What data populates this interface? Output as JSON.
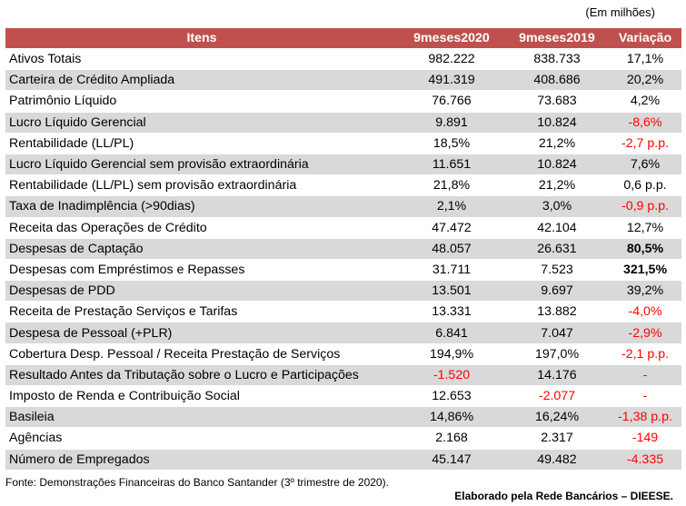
{
  "unit_note": "(Em milhões)",
  "header": {
    "items": "Itens",
    "col_2020": "9meses2020",
    "col_2019": "9meses2019",
    "variation": "Variação"
  },
  "rows": [
    {
      "name": "Ativos Totais",
      "v2020": "982.222",
      "v2019": "838.733",
      "var": "17,1%"
    },
    {
      "name": "Carteira de Crédito Ampliada",
      "v2020": "491.319",
      "v2019": "408.686",
      "var": "20,2%"
    },
    {
      "name": "Patrimônio Líquido",
      "v2020": "76.766",
      "v2019": "73.683",
      "var": "4,2%"
    },
    {
      "name": "Lucro Líquido Gerencial",
      "v2020": "9.891",
      "v2019": "10.824",
      "var": "-8,6%"
    },
    {
      "name": "Rentabilidade (LL/PL)",
      "v2020": "18,5%",
      "v2019": "21,2%",
      "var": "-2,7 p.p."
    },
    {
      "name": "Lucro Líquido Gerencial sem provisão extraordinária",
      "v2020": "11.651",
      "v2019": "10.824",
      "var": "7,6%"
    },
    {
      "name": "Rentabilidade (LL/PL) sem provisão extraordinária",
      "v2020": "21,8%",
      "v2019": "21,2%",
      "var": "0,6 p.p."
    },
    {
      "name": "Taxa de Inadimplência (>90dias)",
      "v2020": "2,1%",
      "v2019": "3,0%",
      "var": "-0,9 p.p."
    },
    {
      "name": "Receita das Operações de Crédito",
      "v2020": "47.472",
      "v2019": "42.104",
      "var": "12,7%"
    },
    {
      "name": "Despesas de Captação",
      "v2020": "48.057",
      "v2019": "26.631",
      "var": "80,5%"
    },
    {
      "name": "Despesas com Empréstimos e Repasses",
      "v2020": "31.711",
      "v2019": "7.523",
      "var": "321,5%"
    },
    {
      "name": "Despesas de PDD",
      "v2020": "13.501",
      "v2019": "9.697",
      "var": "39,2%"
    },
    {
      "name": "Receita de Prestação Serviços e Tarifas",
      "v2020": "13.331",
      "v2019": "13.882",
      "var": "-4,0%"
    },
    {
      "name": "Despesa de Pessoal (+PLR)",
      "v2020": "6.841",
      "v2019": "7.047",
      "var": "-2,9%"
    },
    {
      "name": "Cobertura Desp. Pessoal / Receita Prestação de Serviços",
      "v2020": "194,9%",
      "v2019": "197,0%",
      "var": "-2,1 p.p."
    },
    {
      "name": "Resultado Antes da Tributação sobre o Lucro e Participações",
      "v2020": "-1.520",
      "v2019": "14.176",
      "var": "-"
    },
    {
      "name": "Imposto de Renda e Contribuição Social",
      "v2020": "12.653",
      "v2019": "-2.077",
      "var": "-"
    },
    {
      "name": "Basileia",
      "v2020": "14,86%",
      "v2019": "16,24%",
      "var": "-1,38 p.p."
    },
    {
      "name": "Agências",
      "v2020": "2.168",
      "v2019": "2.317",
      "var": "-149"
    },
    {
      "name": "Número de Empregados",
      "v2020": "45.147",
      "v2019": "49.482",
      "var": "-4.335"
    }
  ],
  "styles": {
    "header_bg": "#c0504d",
    "stripe_bg": "#d9d9d9",
    "negative_color": "#ff0000",
    "negative_cells": {
      "v2020": [
        15
      ],
      "v2019": [
        16
      ],
      "var": [
        3,
        4,
        7,
        12,
        13,
        14,
        15,
        16,
        17,
        18,
        19
      ]
    },
    "bold_var_cells": [
      9,
      10
    ]
  },
  "footer": {
    "source": "Fonte: Demonstrações Financeiras do Banco Santander (3º trimestre de 2020).",
    "credit": "Elaborado pela Rede Bancários – DIEESE."
  }
}
